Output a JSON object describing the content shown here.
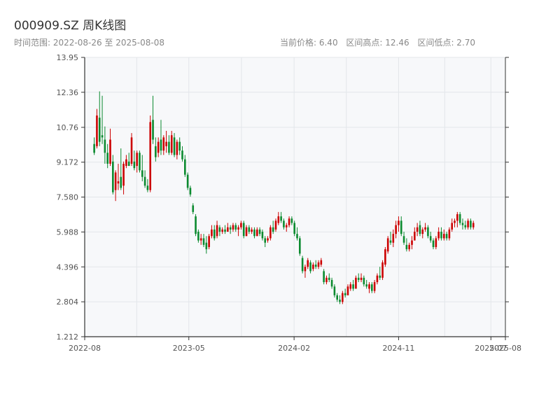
{
  "header": {
    "title": "000909.SZ 周K线图",
    "date_range": "时间范围: 2022-08-26 至 2025-08-08",
    "current_price": "当前价格: 6.40",
    "range_high": "区间高点: 12.46",
    "range_low": "区间低点: 2.70"
  },
  "chart_data": {
    "type": "candlestick",
    "title": "000909.SZ 周K线图",
    "ylim": [
      1.212,
      13.95
    ],
    "y_ticks": [
      "13.95",
      "12.36",
      "10.76",
      "9.172",
      "7.580",
      "5.988",
      "4.396",
      "2.804",
      "1.212"
    ],
    "x_range": [
      "2022-08-26",
      "2025-08-08"
    ],
    "x_ticks": [
      {
        "date": "2022-08-01",
        "label": "2022-08"
      },
      {
        "date": "2023-05-01",
        "label": "2023-05"
      },
      {
        "date": "2024-02-01",
        "label": "2024-02"
      },
      {
        "date": "2024-11-01",
        "label": "2024-11"
      },
      {
        "date": "2025-07-01",
        "label": "2025-07"
      },
      {
        "date": "2025-08-08",
        "label": "2025-08"
      }
    ],
    "grid": true,
    "colors": {
      "up": "#cc0000",
      "down": "#0b8a2f",
      "plot_bg": "#f7f8fa",
      "grid": "#e3e6ea",
      "axis": "#333333"
    },
    "candles_ohlc": [
      [
        10.0,
        10.3,
        9.5,
        9.6
      ],
      [
        9.9,
        11.6,
        9.8,
        11.3
      ],
      [
        11.2,
        12.4,
        9.9,
        10.1
      ],
      [
        10.4,
        12.2,
        10.0,
        10.3
      ],
      [
        10.2,
        10.8,
        9.1,
        9.6
      ],
      [
        9.6,
        10.0,
        8.9,
        9.1
      ],
      [
        9.1,
        10.7,
        9.0,
        10.2
      ],
      [
        9.2,
        9.5,
        7.7,
        7.8
      ],
      [
        7.9,
        8.8,
        7.4,
        8.7
      ],
      [
        8.2,
        9.1,
        7.9,
        8.3
      ],
      [
        8.5,
        9.8,
        7.9,
        8.0
      ],
      [
        8.1,
        9.2,
        7.7,
        9.1
      ],
      [
        9.0,
        9.5,
        8.9,
        9.3
      ],
      [
        9.2,
        9.6,
        9.0,
        9.0
      ],
      [
        9.1,
        10.5,
        9.0,
        10.3
      ],
      [
        9.2,
        9.7,
        8.8,
        8.9
      ],
      [
        9.0,
        9.7,
        8.7,
        9.6
      ],
      [
        9.6,
        9.7,
        8.7,
        8.8
      ],
      [
        8.8,
        9.5,
        8.3,
        8.5
      ],
      [
        8.5,
        8.8,
        8.0,
        8.1
      ],
      [
        8.1,
        8.4,
        7.8,
        7.9
      ],
      [
        7.9,
        11.3,
        7.8,
        11.0
      ],
      [
        11.1,
        12.2,
        10.0,
        10.2
      ],
      [
        9.9,
        10.3,
        9.2,
        9.4
      ],
      [
        9.6,
        10.3,
        9.4,
        10.1
      ],
      [
        10.2,
        11.1,
        9.5,
        9.7
      ],
      [
        9.7,
        10.4,
        9.5,
        10.3
      ],
      [
        9.9,
        10.6,
        9.6,
        10.1
      ],
      [
        10.1,
        10.4,
        9.5,
        9.6
      ],
      [
        9.6,
        10.6,
        9.5,
        10.4
      ],
      [
        10.3,
        10.5,
        9.4,
        9.5
      ],
      [
        9.5,
        10.2,
        9.3,
        10.1
      ],
      [
        10.1,
        10.3,
        9.5,
        9.7
      ],
      [
        9.7,
        9.9,
        9.2,
        9.3
      ],
      [
        9.3,
        9.5,
        8.5,
        8.6
      ],
      [
        8.6,
        8.7,
        7.9,
        8.0
      ],
      [
        8.0,
        8.1,
        7.6,
        7.7
      ],
      [
        7.2,
        7.3,
        6.8,
        6.9
      ],
      [
        6.7,
        6.8,
        5.8,
        5.9
      ],
      [
        6.0,
        6.1,
        5.5,
        5.6
      ],
      [
        5.6,
        5.9,
        5.4,
        5.7
      ],
      [
        5.7,
        5.9,
        5.3,
        5.4
      ],
      [
        5.5,
        5.8,
        5.0,
        5.2
      ],
      [
        5.3,
        5.9,
        5.2,
        5.8
      ],
      [
        5.8,
        6.3,
        5.7,
        6.1
      ],
      [
        6.1,
        6.3,
        5.6,
        5.7
      ],
      [
        5.8,
        6.5,
        5.7,
        6.3
      ],
      [
        6.2,
        6.3,
        5.8,
        6.0
      ],
      [
        6.0,
        6.2,
        5.9,
        6.1
      ],
      [
        6.1,
        6.3,
        5.9,
        6.0
      ],
      [
        6.0,
        6.4,
        6.0,
        6.2
      ],
      [
        6.2,
        6.3,
        5.9,
        6.1
      ],
      [
        6.1,
        6.4,
        6.0,
        6.3
      ],
      [
        6.3,
        6.4,
        6.0,
        6.1
      ],
      [
        6.1,
        6.3,
        5.8,
        6.2
      ],
      [
        6.2,
        6.5,
        6.1,
        6.4
      ],
      [
        6.4,
        6.5,
        5.7,
        5.8
      ],
      [
        5.8,
        6.3,
        5.8,
        6.2
      ],
      [
        6.2,
        6.3,
        5.9,
        6.0
      ],
      [
        6.0,
        6.2,
        5.9,
        6.1
      ],
      [
        6.1,
        6.2,
        5.7,
        5.8
      ],
      [
        5.8,
        6.2,
        5.8,
        6.1
      ],
      [
        6.1,
        6.2,
        5.8,
        5.9
      ],
      [
        6.0,
        6.1,
        5.6,
        5.7
      ],
      [
        5.7,
        5.8,
        5.3,
        5.5
      ],
      [
        5.6,
        5.8,
        5.5,
        5.7
      ],
      [
        5.7,
        6.3,
        5.6,
        6.2
      ],
      [
        6.2,
        6.5,
        5.9,
        6.0
      ],
      [
        6.1,
        6.6,
        6.0,
        6.5
      ],
      [
        6.4,
        6.9,
        6.3,
        6.7
      ],
      [
        6.7,
        6.9,
        6.4,
        6.5
      ],
      [
        6.5,
        6.6,
        6.1,
        6.2
      ],
      [
        6.2,
        6.4,
        6.0,
        6.3
      ],
      [
        6.3,
        6.7,
        6.2,
        6.6
      ],
      [
        6.6,
        6.7,
        6.3,
        6.4
      ],
      [
        6.4,
        6.5,
        5.8,
        5.9
      ],
      [
        5.9,
        6.2,
        5.6,
        5.7
      ],
      [
        5.7,
        5.8,
        4.9,
        5.0
      ],
      [
        4.8,
        4.9,
        4.1,
        4.2
      ],
      [
        4.2,
        4.5,
        3.9,
        4.4
      ],
      [
        4.4,
        4.8,
        4.3,
        4.7
      ],
      [
        4.6,
        4.7,
        4.1,
        4.2
      ],
      [
        4.3,
        4.6,
        4.2,
        4.5
      ],
      [
        4.5,
        4.7,
        4.3,
        4.4
      ],
      [
        4.4,
        4.7,
        4.3,
        4.6
      ],
      [
        4.5,
        4.8,
        4.4,
        4.7
      ],
      [
        4.2,
        4.3,
        3.6,
        3.7
      ],
      [
        3.7,
        4.0,
        3.6,
        3.9
      ],
      [
        3.9,
        4.1,
        3.7,
        3.8
      ],
      [
        3.8,
        3.9,
        3.4,
        3.5
      ],
      [
        3.5,
        3.6,
        3.0,
        3.1
      ],
      [
        3.1,
        3.2,
        2.8,
        2.9
      ],
      [
        2.9,
        3.1,
        2.7,
        2.8
      ],
      [
        2.8,
        3.3,
        2.7,
        3.2
      ],
      [
        3.2,
        3.4,
        3.0,
        3.1
      ],
      [
        3.1,
        3.6,
        3.1,
        3.5
      ],
      [
        3.4,
        3.7,
        3.3,
        3.6
      ],
      [
        3.6,
        3.8,
        3.3,
        3.4
      ],
      [
        3.4,
        4.0,
        3.4,
        3.9
      ],
      [
        3.9,
        4.1,
        3.7,
        3.8
      ],
      [
        3.8,
        4.1,
        3.7,
        3.9
      ],
      [
        3.9,
        4.0,
        3.5,
        3.6
      ],
      [
        3.6,
        3.8,
        3.4,
        3.5
      ],
      [
        3.4,
        3.7,
        3.2,
        3.6
      ],
      [
        3.6,
        3.7,
        3.2,
        3.3
      ],
      [
        3.3,
        3.8,
        3.2,
        3.7
      ],
      [
        3.7,
        4.1,
        3.6,
        4.0
      ],
      [
        4.0,
        4.4,
        3.8,
        3.9
      ],
      [
        3.9,
        4.7,
        3.8,
        4.6
      ],
      [
        4.5,
        5.3,
        4.4,
        5.2
      ],
      [
        5.1,
        5.8,
        5.0,
        5.7
      ],
      [
        5.6,
        6.0,
        5.4,
        5.5
      ],
      [
        5.5,
        6.1,
        5.3,
        5.9
      ],
      [
        5.9,
        6.5,
        5.7,
        6.3
      ],
      [
        6.3,
        6.7,
        6.0,
        6.5
      ],
      [
        6.5,
        6.7,
        5.8,
        5.9
      ],
      [
        5.8,
        6.0,
        5.4,
        5.5
      ],
      [
        5.4,
        5.7,
        5.1,
        5.2
      ],
      [
        5.2,
        5.5,
        5.1,
        5.4
      ],
      [
        5.4,
        5.8,
        5.2,
        5.6
      ],
      [
        5.6,
        6.2,
        5.6,
        6.0
      ],
      [
        6.0,
        6.4,
        5.8,
        6.2
      ],
      [
        6.3,
        6.5,
        5.8,
        5.9
      ],
      [
        5.9,
        6.2,
        5.7,
        6.1
      ],
      [
        6.1,
        6.4,
        6.0,
        6.2
      ],
      [
        6.2,
        6.3,
        5.7,
        5.8
      ],
      [
        5.8,
        6.0,
        5.5,
        5.6
      ],
      [
        5.6,
        5.7,
        5.2,
        5.3
      ],
      [
        5.3,
        5.8,
        5.2,
        5.7
      ],
      [
        5.7,
        6.2,
        5.6,
        6.0
      ],
      [
        6.0,
        6.2,
        5.6,
        5.7
      ],
      [
        5.7,
        6.1,
        5.6,
        5.9
      ],
      [
        5.9,
        6.0,
        5.6,
        5.7
      ],
      [
        5.7,
        6.2,
        5.6,
        6.1
      ],
      [
        6.1,
        6.6,
        6.0,
        6.4
      ],
      [
        6.4,
        6.6,
        6.2,
        6.5
      ],
      [
        6.5,
        6.9,
        6.2,
        6.8
      ],
      [
        6.8,
        6.9,
        6.3,
        6.4
      ],
      [
        6.4,
        6.6,
        6.1,
        6.3
      ],
      [
        6.3,
        6.5,
        6.1,
        6.2
      ],
      [
        6.2,
        6.6,
        6.1,
        6.5
      ],
      [
        6.5,
        6.6,
        6.1,
        6.2
      ],
      [
        6.2,
        6.5,
        6.1,
        6.4
      ]
    ]
  }
}
